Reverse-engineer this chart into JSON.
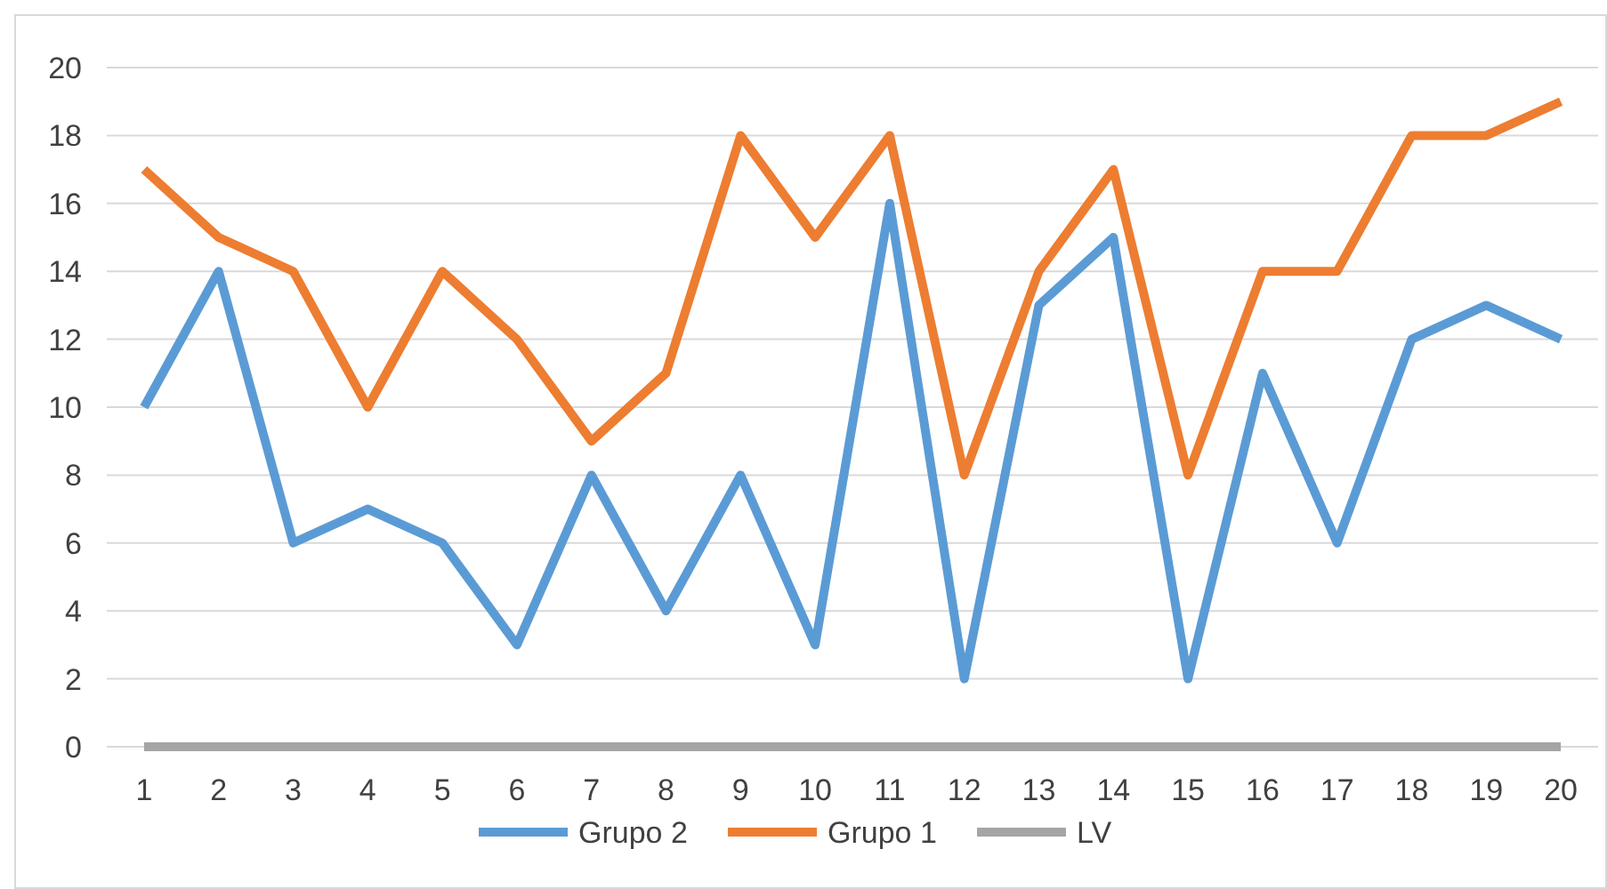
{
  "chart_data": {
    "type": "line",
    "categories": [
      "1",
      "2",
      "3",
      "4",
      "5",
      "6",
      "7",
      "8",
      "9",
      "10",
      "11",
      "12",
      "13",
      "14",
      "15",
      "16",
      "17",
      "18",
      "19",
      "20"
    ],
    "series": [
      {
        "name": "Grupo 2",
        "color": "#5b9bd5",
        "values": [
          10,
          14,
          6,
          7,
          6,
          3,
          8,
          4,
          8,
          3,
          16,
          2,
          13,
          15,
          2,
          11,
          6,
          12,
          13,
          12
        ]
      },
      {
        "name": "Grupo 1",
        "color": "#ed7d31",
        "values": [
          17,
          15,
          14,
          10,
          14,
          12,
          9,
          11,
          18,
          15,
          18,
          8,
          14,
          17,
          8,
          14,
          14,
          18,
          18,
          19
        ]
      },
      {
        "name": "LV",
        "color": "#a5a5a5",
        "values": [
          0,
          0,
          0,
          0,
          0,
          0,
          0,
          0,
          0,
          0,
          0,
          0,
          0,
          0,
          0,
          0,
          0,
          0,
          0,
          0
        ]
      }
    ],
    "ylim": [
      0,
      20
    ],
    "yticks": [
      0,
      2,
      4,
      6,
      8,
      10,
      12,
      14,
      16,
      18,
      20
    ],
    "grid": "y",
    "legend": "bottom",
    "marker": "none",
    "line_style": "solid"
  }
}
